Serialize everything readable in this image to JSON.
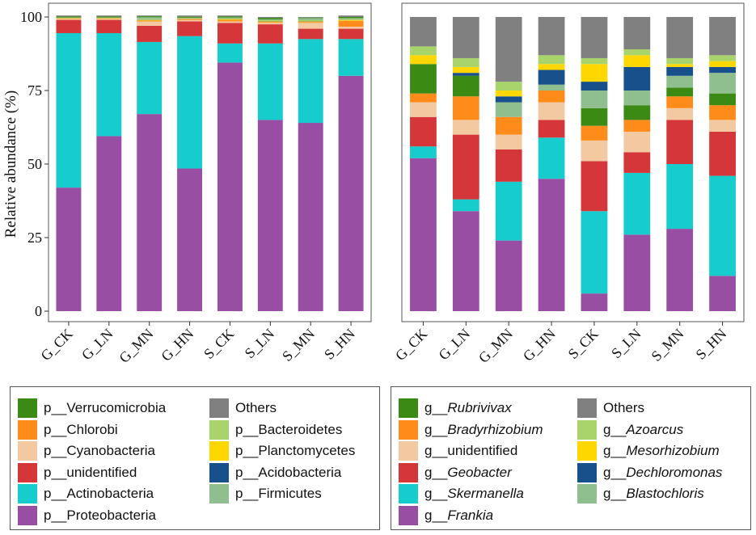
{
  "chart_data": [
    {
      "type": "bar",
      "stacked": true,
      "panel": "phylum",
      "ylabel": "Relative abundance (%)",
      "ylim": [
        0,
        100
      ],
      "yticks": [
        0,
        25,
        50,
        75,
        100
      ],
      "categories": [
        "G_CK",
        "G_LN",
        "G_MN",
        "G_HN",
        "S_CK",
        "S_LN",
        "S_MN",
        "S_HN"
      ],
      "series": [
        {
          "name": "p__Proteobacteria",
          "color": "#984EA3",
          "values": [
            42,
            59.5,
            67,
            48.5,
            84.5,
            65,
            64,
            80
          ]
        },
        {
          "name": "p__Actinobacteria",
          "color": "#17CCCC",
          "values": [
            52.5,
            35,
            24.5,
            45,
            6.5,
            26,
            28.5,
            12.5
          ]
        },
        {
          "name": "p__unidentified",
          "color": "#D53639",
          "values": [
            4.5,
            4.5,
            5.5,
            5,
            7,
            6.5,
            3.5,
            3.5
          ]
        },
        {
          "name": "p__Cyanobacteria",
          "color": "#F2C9A1",
          "values": [
            0.3,
            0.3,
            1.5,
            0.5,
            0.5,
            0.5,
            2,
            0.7
          ]
        },
        {
          "name": "p__Chlorobi",
          "color": "#FF8C1A",
          "values": [
            0.2,
            0.2,
            0.3,
            0.3,
            0.5,
            0.3,
            0.3,
            2
          ]
        },
        {
          "name": "p__Planctomycetes",
          "color": "#FFD700",
          "values": [
            0.1,
            0.1,
            0.2,
            0.1,
            0.3,
            0.2,
            0.2,
            0.3
          ]
        },
        {
          "name": "p__Acidobacteria",
          "color": "#17508A",
          "values": [
            0.05,
            0.05,
            0.1,
            0.05,
            0.1,
            0.1,
            0.1,
            0.1
          ]
        },
        {
          "name": "p__Bacteroidetes",
          "color": "#A9D46C",
          "values": [
            0.1,
            0.1,
            0.3,
            0.2,
            0.2,
            0.3,
            0.3,
            0.3
          ]
        },
        {
          "name": "p__Firmicutes",
          "color": "#8FBF8F",
          "values": [
            0.05,
            0.05,
            0.5,
            0.1,
            0.2,
            0.3,
            0.7,
            0.2
          ]
        },
        {
          "name": "p__Verrucomicrobia",
          "color": "#3A8A14",
          "values": [
            0.35,
            0.35,
            0.35,
            0.35,
            0.35,
            0.5,
            0.2,
            0.4
          ]
        },
        {
          "name": "Others",
          "color": "#808080",
          "values": [
            0.35,
            0.35,
            0.25,
            0.4,
            0.35,
            0.3,
            0.2,
            0.5
          ]
        }
      ]
    },
    {
      "type": "bar",
      "stacked": true,
      "panel": "genus",
      "ylim": [
        0,
        100
      ],
      "categories": [
        "G_CK",
        "G_LN",
        "G_MN",
        "G_HN",
        "S_CK",
        "S_LN",
        "S_MN",
        "S_HN"
      ],
      "series": [
        {
          "name": "g__Frankia",
          "color": "#984EA3",
          "values": [
            52,
            34,
            24,
            45,
            6,
            26,
            28,
            12
          ]
        },
        {
          "name": "g__Skermanella",
          "color": "#17CCCC",
          "values": [
            4,
            4,
            20,
            14,
            28,
            21,
            22,
            34
          ]
        },
        {
          "name": "g__Geobacter",
          "color": "#D53639",
          "values": [
            10,
            22,
            11,
            6,
            17,
            7,
            15,
            15
          ]
        },
        {
          "name": "g__unidentified",
          "color": "#F2C9A1",
          "values": [
            5,
            5,
            5,
            6,
            7,
            7,
            4,
            4
          ]
        },
        {
          "name": "g__Bradyrhizobium",
          "color": "#FF8C1A",
          "values": [
            3,
            8,
            6,
            4,
            5,
            4,
            4,
            5
          ]
        },
        {
          "name": "g__Rubrivivax",
          "color": "#3A8A14",
          "values": [
            10,
            7,
            0,
            0,
            6,
            5,
            3,
            4
          ]
        },
        {
          "name": "g__Blastochloris",
          "color": "#8FBF8F",
          "values": [
            0,
            0,
            5,
            2,
            6,
            5,
            4,
            7
          ]
        },
        {
          "name": "g__Dechloromonas",
          "color": "#17508A",
          "values": [
            0,
            1,
            2,
            5,
            3,
            8,
            3,
            2
          ]
        },
        {
          "name": "g__Mesorhizobium",
          "color": "#FFD700",
          "values": [
            3,
            2,
            2,
            2,
            6,
            4,
            1,
            2
          ]
        },
        {
          "name": "g__Azoarcus",
          "color": "#A9D46C",
          "values": [
            3,
            3,
            3,
            3,
            2,
            2,
            2,
            2
          ]
        },
        {
          "name": "Others",
          "color": "#808080",
          "values": [
            10,
            14,
            22,
            13,
            14,
            11,
            14,
            13
          ]
        }
      ]
    }
  ],
  "legend_left": {
    "items": [
      {
        "label": "p__Verrucomicrobia",
        "color": "#3A8A14"
      },
      {
        "label": "p__Chlorobi",
        "color": "#FF8C1A"
      },
      {
        "label": "p__Cyanobacteria",
        "color": "#F2C9A1"
      },
      {
        "label": "p__unidentified",
        "color": "#D53639"
      },
      {
        "label": "p__Actinobacteria",
        "color": "#17CCCC"
      },
      {
        "label": "p__Proteobacteria",
        "color": "#984EA3"
      },
      {
        "label": "Others",
        "color": "#808080"
      },
      {
        "label": "p__Bacteroidetes",
        "color": "#A9D46C"
      },
      {
        "label": "p__Planctomycetes",
        "color": "#FFD700"
      },
      {
        "label": "p__Acidobacteria",
        "color": "#17508A"
      },
      {
        "label": "p__Firmicutes",
        "color": "#8FBF8F"
      }
    ]
  },
  "legend_right": {
    "items": [
      {
        "prefix": "g__",
        "name": "Rubrivivax",
        "color": "#3A8A14"
      },
      {
        "prefix": "g__",
        "name": "Bradyrhizobium",
        "color": "#FF8C1A"
      },
      {
        "prefix": "g__",
        "name": "unidentified",
        "color": "#F2C9A1",
        "plain": true
      },
      {
        "prefix": "g__",
        "name": "Geobacter",
        "color": "#D53639"
      },
      {
        "prefix": "g__",
        "name": "Skermanella",
        "color": "#17CCCC"
      },
      {
        "prefix": "g__",
        "name": "Frankia",
        "color": "#984EA3"
      },
      {
        "prefix": "",
        "name": "Others",
        "color": "#808080",
        "plain": true
      },
      {
        "prefix": "g__",
        "name": "Azoarcus",
        "color": "#A9D46C"
      },
      {
        "prefix": "g__",
        "name": "Mesorhizobium",
        "color": "#FFD700"
      },
      {
        "prefix": "g__",
        "name": "Dechloromonas",
        "color": "#17508A"
      },
      {
        "prefix": "g__",
        "name": "Blastochloris",
        "color": "#8FBF8F"
      }
    ]
  }
}
